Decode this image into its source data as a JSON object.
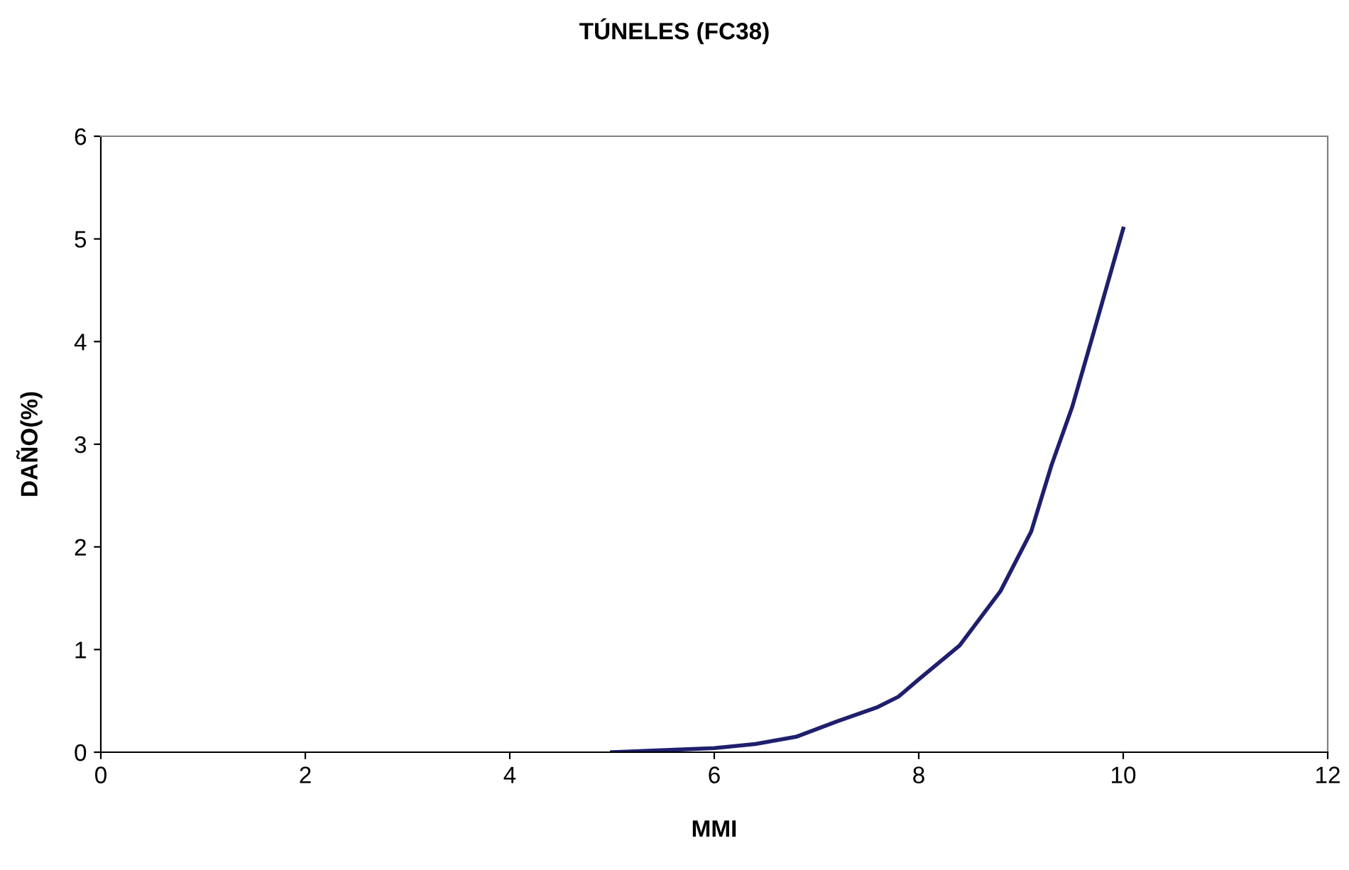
{
  "chart_data": {
    "type": "line",
    "title": "TÚNELES (FC38)",
    "xlabel": "MMI",
    "ylabel": "DAÑO(%)",
    "series": [
      {
        "color": "#1f1f6e",
        "x": [
          5.0,
          6.0,
          6.4,
          6.8,
          7.2,
          7.6,
          7.8,
          8.0,
          8.4,
          8.8,
          9.1,
          9.3,
          9.5,
          9.7,
          10.0
        ],
        "values": [
          0,
          0.04,
          0.08,
          0.15,
          0.3,
          0.44,
          0.54,
          0.71,
          1.04,
          1.57,
          2.15,
          2.8,
          3.36,
          4.05,
          5.1
        ]
      }
    ],
    "xlim": [
      0,
      12
    ],
    "xticks": [
      0,
      2,
      4,
      6,
      8,
      10,
      12
    ],
    "ylim": [
      0,
      6
    ],
    "yticks": [
      0,
      1,
      2,
      3,
      4,
      5,
      6
    ],
    "grid": false,
    "legend": false,
    "marker": "none",
    "line_style": "solid"
  }
}
